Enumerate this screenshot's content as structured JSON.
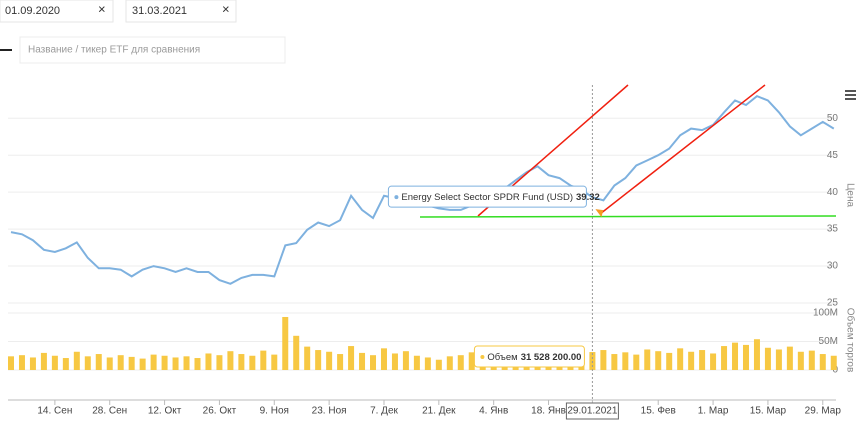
{
  "filters": {
    "date_from": "01.09.2020",
    "date_to": "31.03.2021",
    "compare_placeholder": "Название / тикер ETF для сравнения"
  },
  "chart_data": {
    "type": "line",
    "y_axis_title": "Цена",
    "y2_axis_title": "Объем торгов",
    "categories": [
      null,
      null,
      null,
      null,
      "14. Сен",
      null,
      null,
      null,
      null,
      "28. Сен",
      null,
      null,
      null,
      null,
      "12. Окт",
      null,
      null,
      null,
      null,
      "26. Окт",
      null,
      null,
      null,
      null,
      "9. Ноя",
      null,
      null,
      null,
      null,
      "23. Ноя",
      null,
      null,
      null,
      null,
      "7. Дек",
      null,
      null,
      null,
      null,
      "21. Дек",
      null,
      null,
      null,
      null,
      "4. Янв",
      null,
      null,
      null,
      null,
      "18. Янв",
      null,
      null,
      null,
      "29.01.2021",
      null,
      null,
      null,
      null,
      null,
      "15. Фев",
      null,
      null,
      null,
      null,
      "1. Мар",
      null,
      null,
      null,
      null,
      "15. Мар",
      null,
      null,
      null,
      null,
      "29. Мар",
      null
    ],
    "series": [
      {
        "name": "Energy Select Sector SPDR Fund (USD)",
        "color": "#7eb1df",
        "values": [
          34.6,
          34.3,
          33.5,
          32.2,
          31.9,
          32.4,
          33.2,
          31.1,
          29.7,
          29.7,
          29.5,
          28.6,
          29.5,
          30.0,
          29.7,
          29.2,
          29.7,
          29.2,
          29.2,
          28.1,
          27.6,
          28.4,
          28.8,
          28.8,
          28.6,
          32.8,
          33.1,
          34.9,
          35.9,
          35.4,
          36.2,
          39.5,
          37.6,
          36.5,
          39.5,
          39.2,
          38.9,
          39.6,
          38.2,
          37.8,
          37.6,
          37.6,
          38.2,
          38.9,
          40.0,
          40.5,
          41.6,
          42.7,
          43.5,
          42.3,
          41.9,
          40.9,
          40.3,
          39.32,
          38.9,
          40.9,
          41.9,
          43.6,
          44.3,
          45.0,
          45.9,
          47.7,
          48.6,
          48.4,
          49.1,
          50.8,
          52.4,
          51.8,
          53.0,
          52.4,
          50.8,
          48.9,
          47.7,
          48.6,
          49.5,
          48.6
        ]
      },
      {
        "name": "Объем",
        "type": "bar",
        "axis": "y2",
        "color": "#f7c843",
        "values": [
          24000000.0,
          26000000.0,
          22000000.0,
          30000000.0,
          25000000.0,
          21000000.0,
          32000000.0,
          24000000.0,
          28000000.0,
          22000000.0,
          26000000.0,
          23000000.0,
          20000000.0,
          27000000.0,
          25000000.0,
          22000000.0,
          24000000.0,
          21000000.0,
          29000000.0,
          26000000.0,
          33000000.0,
          28000000.0,
          25000000.0,
          34000000.0,
          27000000.0,
          93000000.0,
          60000000.0,
          41000000.0,
          35000000.0,
          32000000.0,
          28000000.0,
          42000000.0,
          30000000.0,
          26000000.0,
          38000000.0,
          29000000.0,
          33000000.0,
          25000000.0,
          22000000.0,
          18000000.0,
          24000000.0,
          26000000.0,
          31000000.0,
          28000000.0,
          36000000.0,
          29000000.0,
          32000000.0,
          34000000.0,
          27000000.0,
          30000000.0,
          26000000.0,
          29000000.0,
          33000000.0,
          31528200,
          35000000.0,
          28000000.0,
          31000000.0,
          27000000.0,
          36000000.0,
          33000000.0,
          30000000.0,
          38000000.0,
          32000000.0,
          35000000.0,
          29000000.0,
          42000000.0,
          48000000.0,
          44000000.0,
          54000000.0,
          39000000.0,
          36000000.0,
          41000000.0,
          32000000.0,
          34000000.0,
          28000000.0,
          25000000.0
        ]
      }
    ],
    "ylim": [
      25,
      54.5
    ],
    "yticks": [
      25,
      30,
      35,
      40,
      45,
      50
    ],
    "y2lim": [
      0,
      100000000
    ],
    "y2ticks": [
      0,
      {
        "value": 50000000,
        "label": "50M"
      },
      {
        "value": 100000000,
        "label": "100M"
      }
    ],
    "grid": true,
    "tooltip": {
      "volume": {
        "value": 31528200,
        "label": "31 528 200.00"
      }
    }
  }
}
